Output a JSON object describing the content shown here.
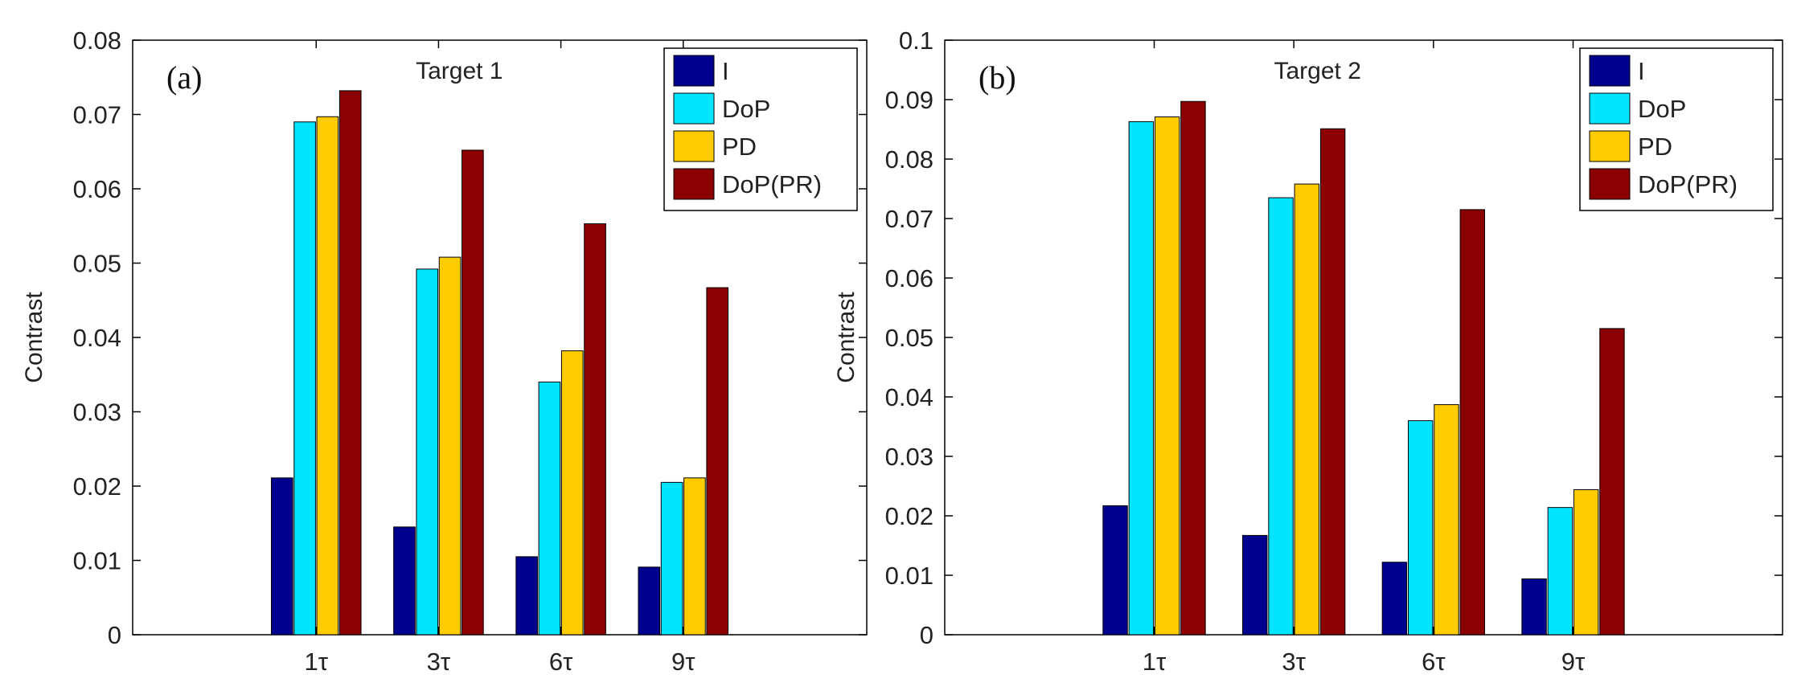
{
  "figure": {
    "background": "#ffffff"
  },
  "chart_data": [
    {
      "type": "bar",
      "panel_label": "(a)",
      "title": "Target 1",
      "xlabel": "",
      "ylabel": "Contrast",
      "ylim": [
        0,
        0.08
      ],
      "yticks": [
        "0",
        "0.01",
        "0.02",
        "0.03",
        "0.04",
        "0.05",
        "0.06",
        "0.07",
        "0.08"
      ],
      "categories": [
        "1τ",
        "3τ",
        "6τ",
        "9τ"
      ],
      "legend_position": "top-right",
      "grid": false,
      "series": [
        {
          "name": "I",
          "color": "#00008f",
          "values": [
            0.0211,
            0.0145,
            0.0105,
            0.0091
          ]
        },
        {
          "name": "DoP",
          "color": "#00e5ff",
          "values": [
            0.069,
            0.0492,
            0.034,
            0.0205
          ]
        },
        {
          "name": "PD",
          "color": "#ffcc00",
          "values": [
            0.0697,
            0.0508,
            0.0382,
            0.0211
          ]
        },
        {
          "name": "DoP(PR)",
          "color": "#8b0000",
          "values": [
            0.0732,
            0.0652,
            0.0553,
            0.0467
          ]
        }
      ]
    },
    {
      "type": "bar",
      "panel_label": "(b)",
      "title": "Target 2",
      "xlabel": "",
      "ylabel": "Contrast",
      "ylim": [
        0,
        0.1
      ],
      "yticks": [
        "0",
        "0.01",
        "0.02",
        "0.03",
        "0.04",
        "0.05",
        "0.06",
        "0.07",
        "0.08",
        "0.09",
        "0.1"
      ],
      "categories": [
        "1τ",
        "3τ",
        "6τ",
        "9τ"
      ],
      "legend_position": "top-right",
      "grid": false,
      "series": [
        {
          "name": "I",
          "color": "#00008f",
          "values": [
            0.0217,
            0.0167,
            0.0122,
            0.0094
          ]
        },
        {
          "name": "DoP",
          "color": "#00e5ff",
          "values": [
            0.0863,
            0.0735,
            0.036,
            0.0214
          ]
        },
        {
          "name": "PD",
          "color": "#ffcc00",
          "values": [
            0.0871,
            0.0758,
            0.0387,
            0.0244
          ]
        },
        {
          "name": "DoP(PR)",
          "color": "#8b0000",
          "values": [
            0.0897,
            0.0851,
            0.0715,
            0.0515
          ]
        }
      ]
    }
  ]
}
